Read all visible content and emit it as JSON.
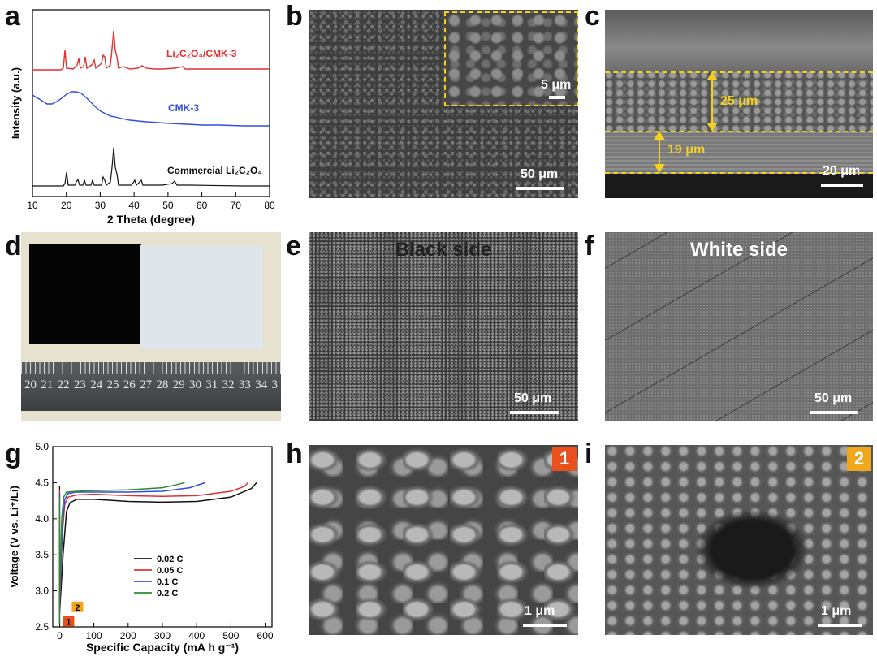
{
  "panel_labels": {
    "a": "a",
    "b": "b",
    "c": "c",
    "d": "d",
    "e": "e",
    "f": "f",
    "g": "g",
    "h": "h",
    "i": "i"
  },
  "panel_a": {
    "xlabel": "2 Theta (degree)",
    "ylabel": "Intensity (a.u.)",
    "xticks": [
      "10",
      "20",
      "30",
      "40",
      "50",
      "60",
      "70",
      "80"
    ],
    "trace_labels": [
      "Li₂C₂O₄/CMK-3",
      "CMK-3",
      "Commercial Li₂C₂O₄"
    ],
    "colors": [
      "#e03030",
      "#2f4fdc",
      "#111111"
    ]
  },
  "panel_b": {
    "scalebar_main": "50 μm",
    "scalebar_inset": "5 μm"
  },
  "panel_c": {
    "thickness_top": "25 μm",
    "thickness_bottom": "19 μm",
    "scalebar": "20 μm",
    "accent": "#f3d022"
  },
  "panel_d": {
    "ruler_numbers": [
      "20",
      "21",
      "22",
      "23",
      "24",
      "25",
      "26",
      "27",
      "28",
      "29",
      "30",
      "31",
      "32",
      "33",
      "34",
      "3"
    ]
  },
  "panel_e": {
    "title": "Black side",
    "scalebar": "50 μm"
  },
  "panel_f": {
    "title": "White side",
    "scalebar": "50 μm"
  },
  "panel_h": {
    "badge": "1",
    "scalebar": "1 μm",
    "badge_color": "#e8501c"
  },
  "panel_i": {
    "badge": "2",
    "scalebar": "1 μm",
    "badge_color": "#f0a71c"
  },
  "chart_data": [
    {
      "panel": "g",
      "type": "line",
      "xlabel": "Specific Capacity (mA h g⁻¹)",
      "ylabel": "Voltage (V vs. Li⁺/Li)",
      "xlim": [
        -20,
        620
      ],
      "ylim": [
        2.5,
        5.0
      ],
      "xticks": [
        0,
        100,
        200,
        300,
        400,
        500,
        600
      ],
      "yticks": [
        2.5,
        3.0,
        3.5,
        4.0,
        4.5,
        5.0
      ],
      "legend_position": "center-left",
      "markers": [
        "1",
        "2"
      ],
      "series": [
        {
          "name": "0.02 C",
          "color": "#111111",
          "x": [
            0,
            10,
            20,
            30,
            50,
            100,
            200,
            300,
            400,
            500,
            560,
            575
          ],
          "y": [
            2.7,
            3.5,
            4.1,
            4.22,
            4.27,
            4.27,
            4.24,
            4.23,
            4.24,
            4.3,
            4.42,
            4.5
          ]
        },
        {
          "name": "0.05 C",
          "color": "#e03030",
          "x": [
            0,
            8,
            15,
            25,
            50,
            100,
            200,
            300,
            400,
            500,
            540,
            550
          ],
          "y": [
            2.8,
            3.8,
            4.2,
            4.3,
            4.33,
            4.34,
            4.32,
            4.31,
            4.32,
            4.38,
            4.45,
            4.5
          ]
        },
        {
          "name": "0.1 C",
          "color": "#2f4fdc",
          "x": [
            0,
            8,
            15,
            25,
            50,
            100,
            200,
            300,
            380,
            425
          ],
          "y": [
            2.9,
            3.9,
            4.27,
            4.35,
            4.37,
            4.37,
            4.37,
            4.38,
            4.43,
            4.5
          ]
        },
        {
          "name": "0.2 C",
          "color": "#2e8b2e",
          "x": [
            0,
            6,
            12,
            20,
            50,
            100,
            200,
            300,
            340,
            365
          ],
          "y": [
            3.0,
            4.0,
            4.3,
            4.37,
            4.38,
            4.39,
            4.4,
            4.43,
            4.47,
            4.5
          ]
        }
      ]
    }
  ]
}
